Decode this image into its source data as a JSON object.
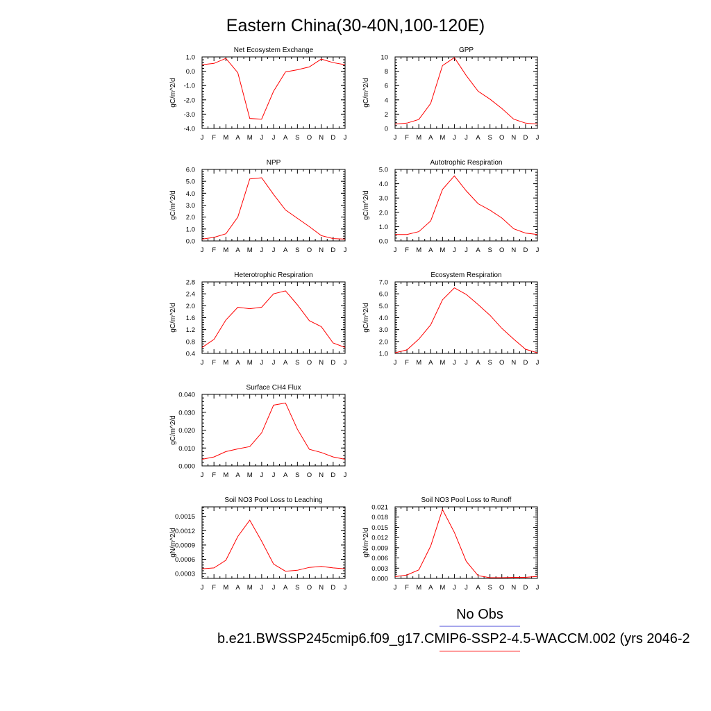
{
  "figure": {
    "title": "Eastern China(30-40N,100-120E)",
    "legend": {
      "obs_label": "No Obs",
      "obs_color": "#7070e0",
      "model_label": "b.e21.BWSSP245cmip6.f09_g17.CMIP6-SSP2-4.5-WACCM.002 (yrs 2046-2",
      "model_color": "#ff6060"
    }
  },
  "chart_data": [
    {
      "type": "line",
      "title": "Net Ecosystem Exchange",
      "ylabel": "gC/m^2/d",
      "ylim": [
        -4.0,
        1.0
      ],
      "yticks": [
        "1.0",
        "0.0",
        "-1.0",
        "-2.0",
        "-3.0",
        "-4.0"
      ],
      "ytick_values": [
        1.0,
        0.0,
        -1.0,
        -2.0,
        -3.0,
        -4.0
      ],
      "categories": [
        "J",
        "F",
        "M",
        "A",
        "M",
        "J",
        "J",
        "A",
        "S",
        "O",
        "N",
        "D",
        "J"
      ],
      "values": [
        0.45,
        0.55,
        0.9,
        -0.1,
        -3.3,
        -3.35,
        -1.4,
        -0.05,
        0.1,
        0.3,
        0.85,
        0.6,
        0.45
      ],
      "color": "#ff0000"
    },
    {
      "type": "line",
      "title": "GPP",
      "ylabel": "gC/m^2/d",
      "ylim": [
        0,
        10
      ],
      "yticks": [
        "10",
        "8",
        "6",
        "4",
        "2",
        "0"
      ],
      "ytick_values": [
        10,
        8,
        6,
        4,
        2,
        0
      ],
      "categories": [
        "J",
        "F",
        "M",
        "A",
        "M",
        "J",
        "J",
        "A",
        "S",
        "O",
        "N",
        "D",
        "J"
      ],
      "values": [
        0.6,
        0.75,
        1.25,
        3.5,
        8.8,
        9.9,
        7.4,
        5.2,
        4.1,
        2.8,
        1.3,
        0.75,
        0.6
      ],
      "color": "#ff0000"
    },
    {
      "type": "line",
      "title": "NPP",
      "ylabel": "gC/m^2/d",
      "ylim": [
        0.0,
        6.0
      ],
      "yticks": [
        "6.0",
        "5.0",
        "4.0",
        "3.0",
        "2.0",
        "1.0",
        "0.0"
      ],
      "ytick_values": [
        6,
        5,
        4,
        3,
        2,
        1,
        0
      ],
      "categories": [
        "J",
        "F",
        "M",
        "A",
        "M",
        "J",
        "J",
        "A",
        "S",
        "O",
        "N",
        "D",
        "J"
      ],
      "values": [
        0.15,
        0.3,
        0.6,
        2.0,
        5.2,
        5.3,
        3.9,
        2.6,
        1.9,
        1.2,
        0.45,
        0.2,
        0.15
      ],
      "color": "#ff0000"
    },
    {
      "type": "line",
      "title": "Autotrophic Respiration",
      "ylabel": "gC/m^2/d",
      "ylim": [
        0.0,
        5.0
      ],
      "yticks": [
        "5.0",
        "4.0",
        "3.0",
        "2.0",
        "1.0",
        "0.0"
      ],
      "ytick_values": [
        5,
        4,
        3,
        2,
        1,
        0
      ],
      "categories": [
        "J",
        "F",
        "M",
        "A",
        "M",
        "J",
        "J",
        "A",
        "S",
        "O",
        "N",
        "D",
        "J"
      ],
      "values": [
        0.45,
        0.45,
        0.65,
        1.4,
        3.6,
        4.55,
        3.5,
        2.6,
        2.15,
        1.6,
        0.85,
        0.55,
        0.45
      ],
      "color": "#ff0000"
    },
    {
      "type": "line",
      "title": "Heterotrophic Respiration",
      "ylabel": "gC/m^2/d",
      "ylim": [
        0.4,
        2.8
      ],
      "yticks": [
        "2.8",
        "2.4",
        "2.0",
        "1.6",
        "1.2",
        "0.8",
        "0.4"
      ],
      "ytick_values": [
        2.8,
        2.4,
        2.0,
        1.6,
        1.2,
        0.8,
        0.4
      ],
      "categories": [
        "J",
        "F",
        "M",
        "A",
        "M",
        "J",
        "J",
        "A",
        "S",
        "O",
        "N",
        "D",
        "J"
      ],
      "values": [
        0.6,
        0.87,
        1.52,
        1.95,
        1.9,
        1.95,
        2.4,
        2.5,
        2.03,
        1.5,
        1.3,
        0.75,
        0.6
      ],
      "color": "#ff0000"
    },
    {
      "type": "line",
      "title": "Ecosystem Respiration",
      "ylabel": "gC/m^2/d",
      "ylim": [
        1.0,
        7.0
      ],
      "yticks": [
        "7.0",
        "6.0",
        "5.0",
        "4.0",
        "3.0",
        "2.0",
        "1.0"
      ],
      "ytick_values": [
        7,
        6,
        5,
        4,
        3,
        2,
        1
      ],
      "categories": [
        "J",
        "F",
        "M",
        "A",
        "M",
        "J",
        "J",
        "A",
        "S",
        "O",
        "N",
        "D",
        "J"
      ],
      "values": [
        1.05,
        1.3,
        2.2,
        3.4,
        5.5,
        6.5,
        5.95,
        5.1,
        4.2,
        3.1,
        2.2,
        1.35,
        1.05
      ],
      "color": "#ff0000"
    },
    {
      "type": "line",
      "title": "Surface CH4 Flux",
      "ylabel": "gC/m^2/d",
      "ylim": [
        0.0,
        0.04
      ],
      "yticks": [
        "0.040",
        "0.030",
        "0.020",
        "0.010",
        "0.000"
      ],
      "ytick_values": [
        0.04,
        0.03,
        0.02,
        0.01,
        0.0
      ],
      "categories": [
        "J",
        "F",
        "M",
        "A",
        "M",
        "J",
        "J",
        "A",
        "S",
        "O",
        "N",
        "D",
        "J"
      ],
      "values": [
        0.0037,
        0.005,
        0.008,
        0.0095,
        0.0108,
        0.0185,
        0.034,
        0.0352,
        0.0205,
        0.0093,
        0.0075,
        0.005,
        0.0037
      ],
      "color": "#ff0000"
    },
    {
      "type": "line",
      "title": "Soil NO3 Pool Loss to Leaching",
      "ylabel": "gN/m^2/d",
      "ylim": [
        0.0002,
        0.0017
      ],
      "yticks": [
        "0.0015",
        "0.0012",
        "0.0009",
        "0.0006",
        "0.0003"
      ],
      "ytick_values": [
        0.0015,
        0.0012,
        0.0009,
        0.0006,
        0.0003
      ],
      "categories": [
        "J",
        "F",
        "M",
        "A",
        "M",
        "J",
        "J",
        "A",
        "S",
        "O",
        "N",
        "D",
        "J"
      ],
      "values": [
        0.0004,
        0.00042,
        0.00058,
        0.00108,
        0.00142,
        0.00098,
        0.0005,
        0.00035,
        0.00037,
        0.00043,
        0.00045,
        0.00042,
        0.0004
      ],
      "color": "#ff0000"
    },
    {
      "type": "line",
      "title": "Soil NO3 Pool Loss to Runoff",
      "ylabel": "gN/m^2/d",
      "ylim": [
        0.0,
        0.021
      ],
      "yticks": [
        "0.021",
        "0.018",
        "0.015",
        "0.012",
        "0.009",
        "0.006",
        "0.003",
        "0.000"
      ],
      "ytick_values": [
        0.021,
        0.018,
        0.015,
        0.012,
        0.009,
        0.006,
        0.003,
        0.0
      ],
      "categories": [
        "J",
        "F",
        "M",
        "A",
        "M",
        "J",
        "J",
        "A",
        "S",
        "O",
        "N",
        "D",
        "J"
      ],
      "values": [
        0.0005,
        0.001,
        0.0025,
        0.0095,
        0.0202,
        0.0135,
        0.005,
        0.0008,
        0.0002,
        0.0002,
        0.0003,
        0.0003,
        0.0006
      ],
      "color": "#ff0000"
    }
  ]
}
